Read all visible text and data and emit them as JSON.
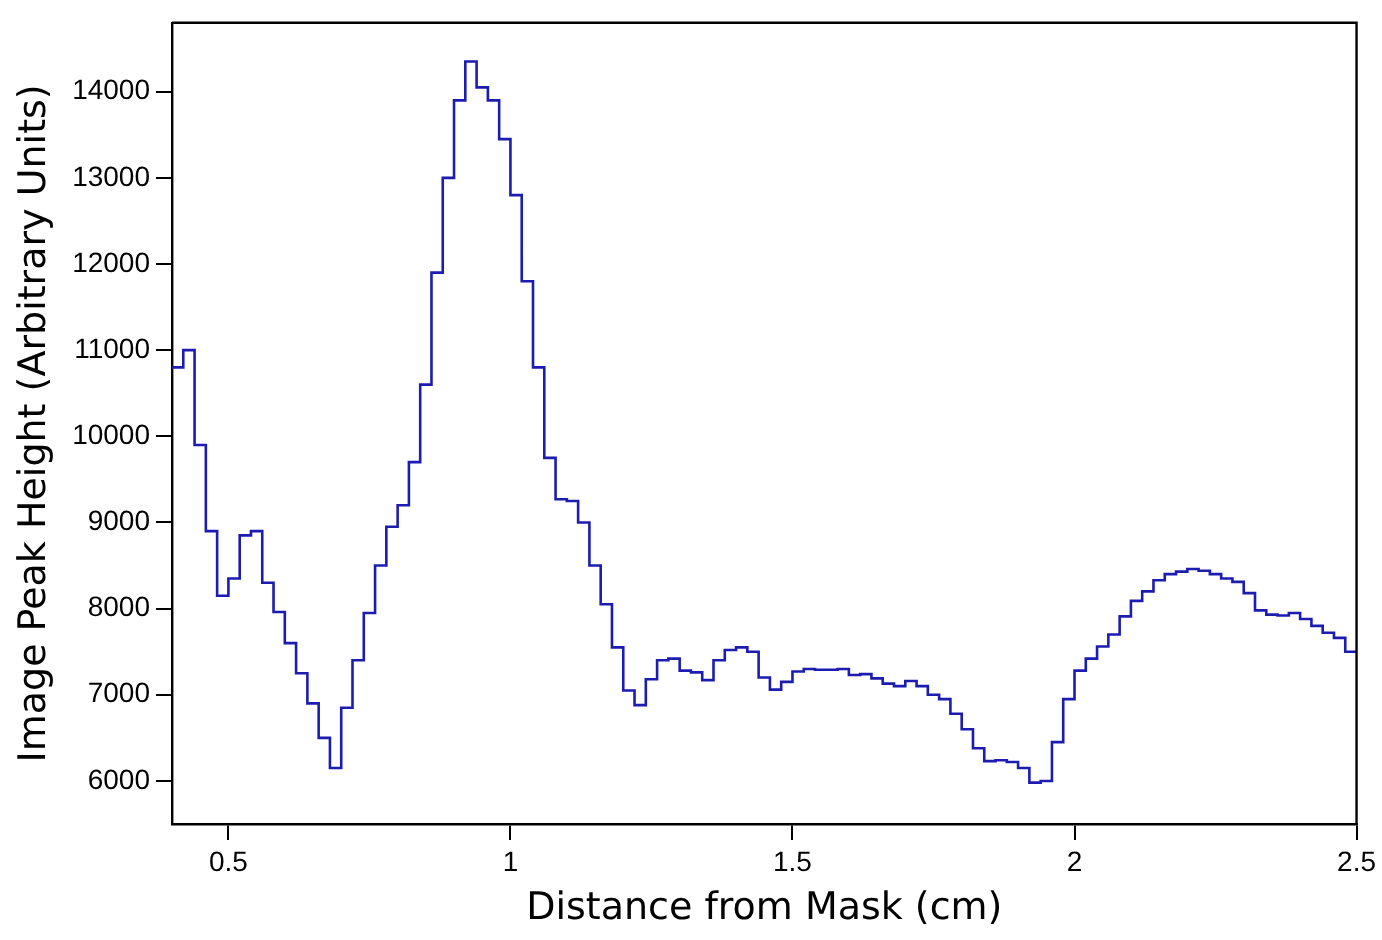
{
  "chart_data": {
    "type": "histogram",
    "xlabel": "Distance from Mask (cm)",
    "ylabel": "Image Peak Height (Arbitrary Units)",
    "bins": [
      0.4,
      0.42,
      0.44,
      0.46,
      0.48,
      0.5,
      0.52,
      0.54,
      0.56,
      0.58,
      0.6,
      0.62,
      0.64,
      0.66,
      0.68,
      0.7,
      0.72,
      0.74,
      0.76,
      0.78,
      0.8,
      0.82,
      0.84,
      0.86,
      0.88,
      0.9,
      0.92,
      0.94,
      0.96,
      0.98,
      1.0,
      1.02,
      1.04,
      1.06,
      1.08,
      1.1,
      1.12,
      1.14,
      1.16,
      1.18,
      1.2,
      1.22,
      1.24,
      1.26,
      1.28,
      1.3,
      1.32,
      1.34,
      1.36,
      1.38,
      1.4,
      1.42,
      1.44,
      1.46,
      1.48,
      1.5,
      1.52,
      1.54,
      1.56,
      1.58,
      1.6,
      1.62,
      1.64,
      1.66,
      1.68,
      1.7,
      1.72,
      1.74,
      1.76,
      1.78,
      1.8,
      1.82,
      1.84,
      1.86,
      1.88,
      1.9,
      1.92,
      1.94,
      1.96,
      1.98,
      2.0,
      2.02,
      2.04,
      2.06,
      2.08,
      2.1,
      2.12,
      2.14,
      2.16,
      2.18,
      2.2,
      2.22,
      2.24,
      2.26,
      2.28,
      2.3,
      2.32,
      2.34,
      2.36,
      2.38,
      2.4,
      2.42,
      2.44,
      2.46,
      2.48,
      2.5
    ],
    "values": [
      10800,
      11000,
      9900,
      8900,
      8150,
      8350,
      8850,
      8900,
      8300,
      7960,
      7600,
      7250,
      6900,
      6500,
      6150,
      6850,
      7400,
      7950,
      8500,
      8950,
      9200,
      9700,
      10600,
      11900,
      13000,
      13900,
      14350,
      14050,
      13900,
      13450,
      12800,
      11800,
      10800,
      9750,
      9270,
      9250,
      9000,
      8500,
      8050,
      7550,
      7050,
      6880,
      7180,
      7400,
      7420,
      7280,
      7260,
      7170,
      7400,
      7520,
      7550,
      7500,
      7200,
      7060,
      7150,
      7270,
      7300,
      7290,
      7290,
      7300,
      7230,
      7240,
      7190,
      7130,
      7100,
      7160,
      7100,
      7000,
      6950,
      6780,
      6600,
      6380,
      6230,
      6240,
      6220,
      6150,
      5980,
      6000,
      6450,
      6950,
      7280,
      7420,
      7560,
      7700,
      7910,
      8090,
      8200,
      8330,
      8400,
      8430,
      8460,
      8440,
      8400,
      8350,
      8310,
      8180,
      7980,
      7930,
      7920,
      7950,
      7880,
      7800,
      7720,
      7660,
      7500
    ],
    "color": "#1c1cb0",
    "xlim": [
      0.4,
      2.5
    ],
    "xticks": [
      {
        "value": 0.5,
        "label": "0.5"
      },
      1,
      {
        "value": 1.5,
        "label": "1.5"
      },
      2,
      {
        "value": 2.5,
        "label": "2.5"
      }
    ],
    "ylim": [
      5500,
      14800
    ],
    "yticks": [
      6000,
      7000,
      8000,
      9000,
      10000,
      11000,
      12000,
      13000,
      14000
    ],
    "grid": false,
    "legend": false
  }
}
